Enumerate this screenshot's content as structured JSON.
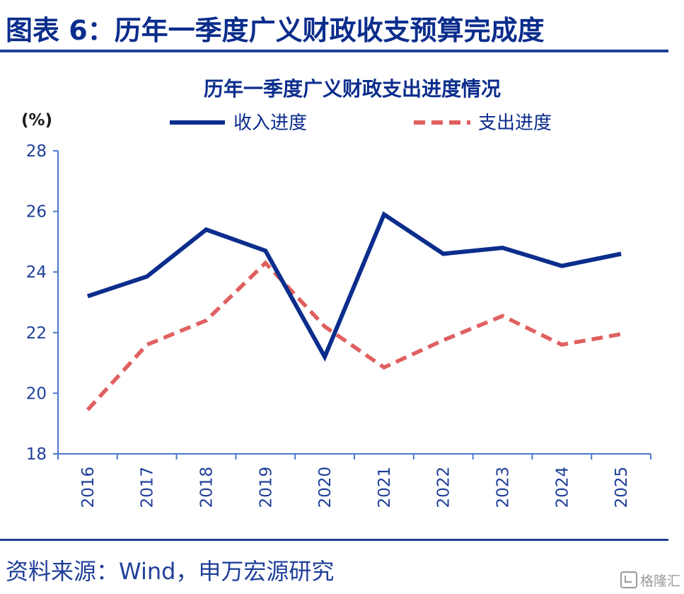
{
  "header": {
    "title": "图表 6：历年一季度广义财政收支预算完成度"
  },
  "footer": {
    "source": "资料来源：Wind，申万宏源研究",
    "watermark": "格隆汇"
  },
  "colors": {
    "income": "#0b2d8c",
    "expenditure": "#e06060",
    "axis": "#4a78c8",
    "text": "#1f3f99"
  },
  "chart_data": {
    "type": "line",
    "title": "历年一季度广义财政支出进度情况",
    "unit_label": "(%)",
    "categories": [
      "2016",
      "2017",
      "2018",
      "2019",
      "2020",
      "2021",
      "2022",
      "2023",
      "2024",
      "2025"
    ],
    "series": [
      {
        "name": "收入进度",
        "style": "solid",
        "color": "#0b2d8c",
        "values": [
          23.2,
          23.85,
          25.4,
          24.7,
          21.2,
          25.9,
          24.6,
          24.8,
          24.2,
          24.6
        ]
      },
      {
        "name": "支出进度",
        "style": "dashed",
        "color": "#e06060",
        "values": [
          19.45,
          21.6,
          22.4,
          24.3,
          22.2,
          20.85,
          21.75,
          22.55,
          21.6,
          21.95
        ]
      }
    ],
    "ylim": [
      18,
      28
    ],
    "yticks": [
      "18",
      "20",
      "22",
      "24",
      "26",
      "28"
    ],
    "legend_position": "top"
  }
}
